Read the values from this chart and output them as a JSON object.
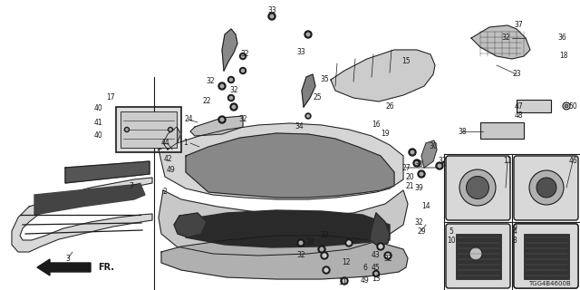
{
  "background_color": "#ffffff",
  "diagram_code": "TGG4B4600B",
  "fig_width": 6.4,
  "fig_height": 3.2,
  "dpi": 100,
  "line_color": "#1a1a1a",
  "fill_light": "#e8e8e8",
  "fill_dark": "#2a2a2a",
  "fill_mid": "#b0b0b0",
  "label_fontsize": 5.5,
  "label_color": "#1a1a1a"
}
